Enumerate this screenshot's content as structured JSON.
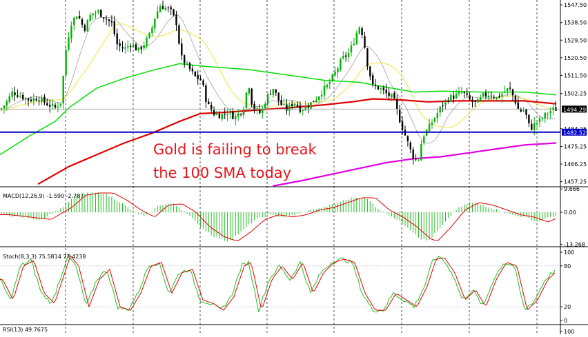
{
  "colors": {
    "background": "#ffffff",
    "bull_candle": "#00b000",
    "bear_candle": "#000000",
    "sma100": "#e00000",
    "sma200": "#e000e0",
    "sma50": "#00dd00",
    "sma20": "#f2e64a",
    "sma10": "#a0a0a0",
    "support_line": "#0000c8",
    "current_price_bg": "#000000",
    "support_price_bg": "#0000c8",
    "macd_hist": "#20c020",
    "macd_signal": "#e00000",
    "stoch_main": "#20c020",
    "stoch_signal": "#e00000",
    "annotation": "#e8141b",
    "grid": "#000000"
  },
  "chart_data": {
    "type": "candlestick",
    "symbol": "Gold",
    "price_axis": {
      "ticks": [
        "1547.50",
        "1538.50",
        "1529.50",
        "1520.50",
        "1511.50",
        "1502.25",
        "1494.29",
        "1484.25",
        "1482.52",
        "1475.25",
        "1466.25",
        "1457.25"
      ],
      "ylim": [
        1455,
        1550
      ]
    },
    "current_price": "1494.29",
    "support_price": "1482.52",
    "support_level": 1482.52,
    "annotation": [
      "Gold is failing to break",
      "the 100 SMA today"
    ],
    "panels": {
      "macd": {
        "label": "MACD(12,26,9) -1.590 -2.787",
        "ticks": [
          "9.666",
          "0.00",
          "-13.268"
        ],
        "ylim": [
          -14,
          10
        ]
      },
      "stoch": {
        "label": "Stoch(8,3,3) 75.5814 77.4238",
        "ticks": [
          "100",
          "80",
          "20",
          "0"
        ],
        "ylim": [
          0,
          100
        ]
      },
      "rsi": {
        "label": "RSI(13) 49.7675",
        "ticks": [
          "100"
        ]
      }
    }
  }
}
